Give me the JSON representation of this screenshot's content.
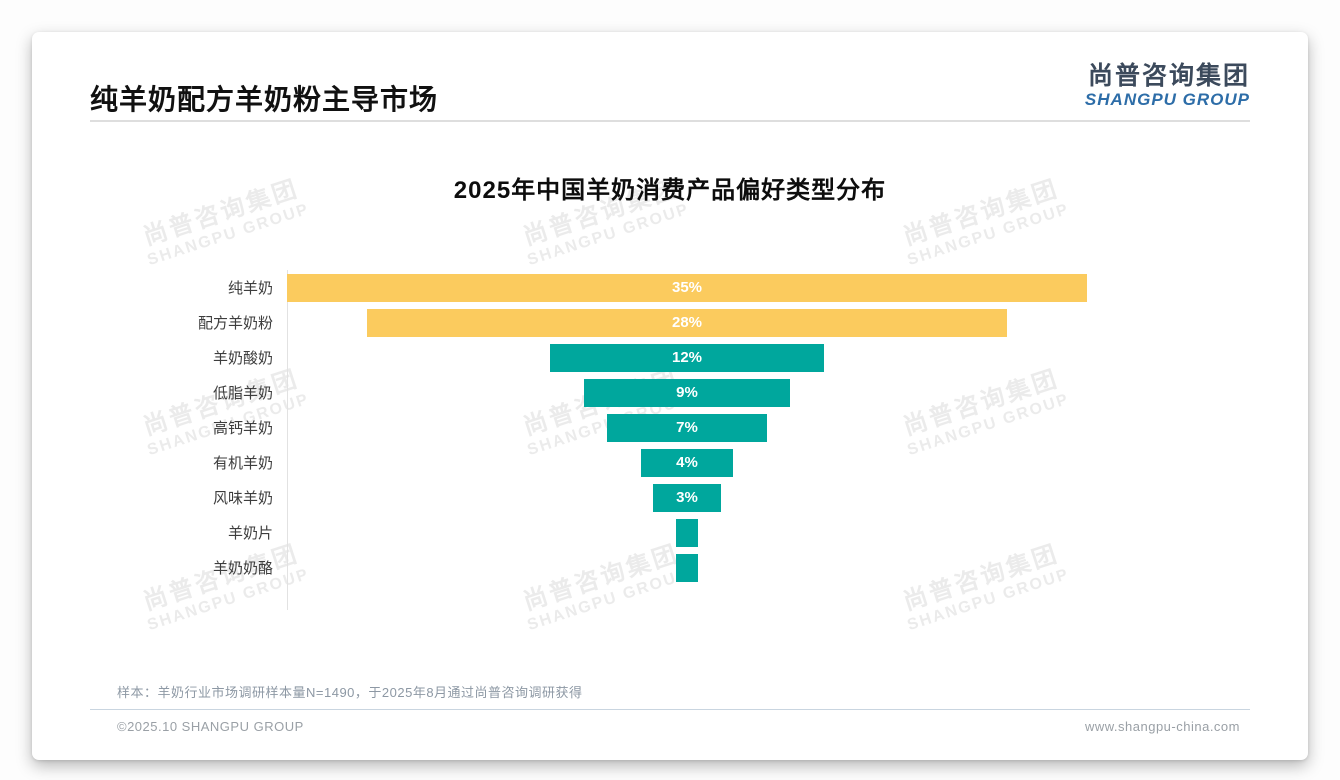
{
  "page": {
    "title": "纯羊奶配方羊奶粉主导市场",
    "logo": {
      "cn": "尚普咨询集团",
      "en": "SHANGPU GROUP"
    },
    "watermark": {
      "cn": "尚普咨询集团",
      "en": "SHANGPU GROUP"
    },
    "footnote": "样本：羊奶行业市场调研样本量N=1490，于2025年8月通过尚普咨询调研获得",
    "footer": {
      "left": "©2025.10 SHANGPU GROUP",
      "right": "www.shangpu-china.com"
    }
  },
  "chart_data": {
    "type": "bar",
    "subtype": "centered-funnel-horizontal",
    "title": "2025年中国羊奶消费产品偏好类型分布",
    "categories": [
      "纯羊奶",
      "配方羊奶粉",
      "羊奶酸奶",
      "低脂羊奶",
      "高钙羊奶",
      "有机羊奶",
      "风味羊奶",
      "羊奶片",
      "羊奶奶酪"
    ],
    "values": [
      35,
      28,
      12,
      9,
      7,
      4,
      3,
      1,
      1
    ],
    "unit": "%",
    "value_labels": [
      "35%",
      "28%",
      "12%",
      "9%",
      "7%",
      "4%",
      "3%",
      "",
      ""
    ],
    "colors": [
      "#fbcb5e",
      "#fbcb5e",
      "#00a79d",
      "#00a79d",
      "#00a79d",
      "#00a79d",
      "#00a79d",
      "#00a79d",
      "#00a79d"
    ],
    "accent_yellow": "#fbcb5e",
    "accent_teal": "#00a79d",
    "value_label_color": "#ffffff",
    "xmax": 35,
    "orientation": "horizontal",
    "grid": false,
    "legend": "none"
  }
}
